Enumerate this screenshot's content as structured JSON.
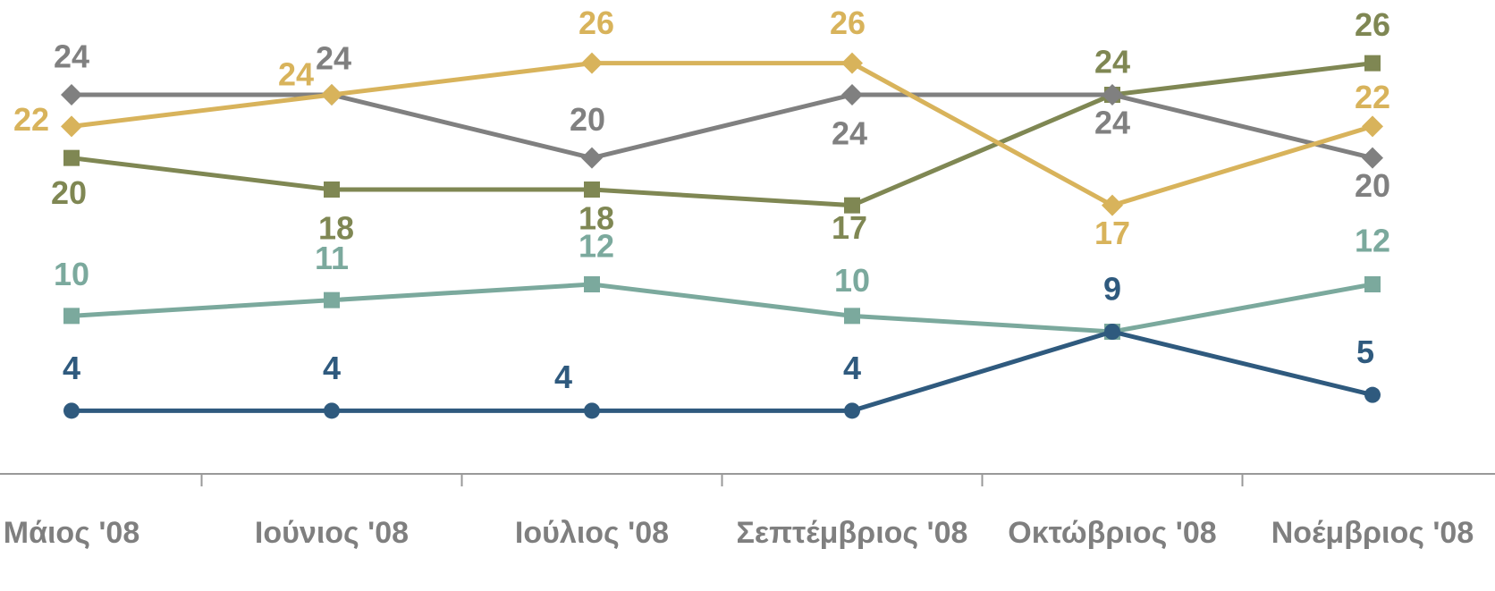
{
  "chart_data": {
    "type": "line",
    "categories": [
      "Μάιος '08",
      "Ιούνιος '08",
      "Ιούλιος '08",
      "Σεπτέμβριος '08",
      "Οκτώβριος '08",
      "Νοέμβριος '08"
    ],
    "ylim": [
      0,
      30
    ],
    "series": [
      {
        "color": "#7ba99d",
        "marker": "square",
        "values": [
          10,
          11,
          12,
          10,
          9,
          12
        ],
        "value_labels": [
          "10",
          "11",
          "12",
          "10",
          null,
          "12"
        ]
      },
      {
        "color": "#2f5a7e",
        "marker": "circle",
        "values": [
          4,
          4,
          4,
          4,
          9,
          5
        ]
      },
      {
        "color": "#7f8753",
        "marker": "square",
        "values": [
          20,
          18,
          18,
          17,
          24,
          26
        ]
      },
      {
        "color": "#808080",
        "marker": "diamond",
        "values": [
          24,
          24,
          20,
          24,
          24,
          20
        ]
      },
      {
        "color": "#d8b35b",
        "marker": "diamond",
        "values": [
          22,
          24,
          26,
          26,
          17,
          22
        ]
      }
    ]
  }
}
